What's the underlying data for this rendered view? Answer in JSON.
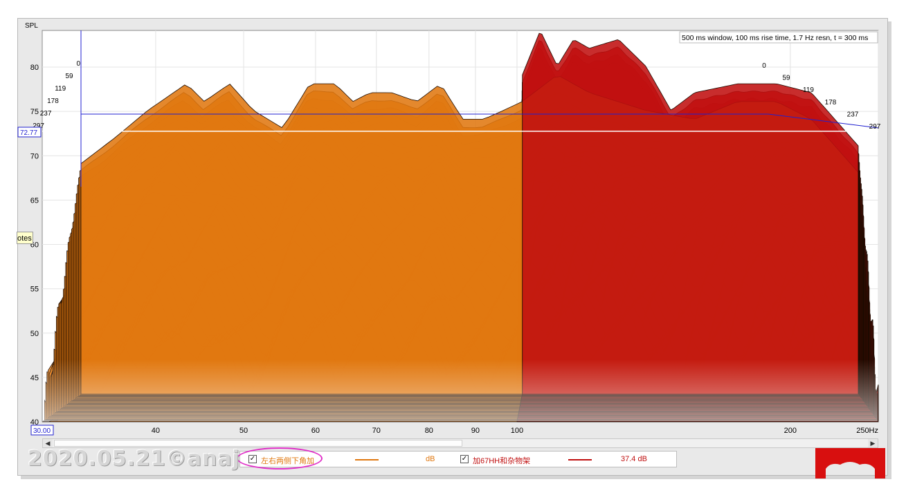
{
  "overlay": {
    "info_text": "500 ms window, 100 ms rise time,  1.7 Hz resn, t = 300 ms",
    "cursor_value": "72.77",
    "x_start_value": "30.00",
    "tab_text": "otes"
  },
  "legend": {
    "items": [
      {
        "name": "左右两侧下角加",
        "checked": "✓",
        "value": "dB",
        "color": "#e07810"
      },
      {
        "name": "加67HH和杂物架",
        "checked": "✓",
        "value": "37.4 dB",
        "color": "#c01010"
      }
    ]
  },
  "watermark": "2020.05.21©anaj",
  "colors": {
    "orange": "#e07810",
    "red": "#c01010",
    "cursor": "#2020d0"
  },
  "chart_data": {
    "type": "area",
    "ylabel": "SPL",
    "xlabel": "",
    "x_scale": "log",
    "xlim": [
      30,
      250
    ],
    "ylim": [
      40,
      82
    ],
    "y_ticks": [
      40,
      45,
      50,
      55,
      60,
      65,
      70,
      75,
      80
    ],
    "x_ticks": [
      {
        "v": 40,
        "label": "40"
      },
      {
        "v": 50,
        "label": "50"
      },
      {
        "v": 60,
        "label": "60"
      },
      {
        "v": 70,
        "label": "70"
      },
      {
        "v": 80,
        "label": "80"
      },
      {
        "v": 90,
        "label": "90"
      },
      {
        "v": 100,
        "label": "100"
      },
      {
        "v": 200,
        "label": "200"
      },
      {
        "v": 250,
        "label": "250Hz"
      }
    ],
    "time_ticks_ms": [
      0,
      59,
      119,
      178,
      237,
      297
    ],
    "cursor_spl": 72.77,
    "series": [
      {
        "name": "左右两侧下角加",
        "color": "#e07810",
        "x": [
          30,
          33,
          36,
          40,
          42,
          45,
          48,
          52,
          56,
          60,
          63,
          66,
          70,
          75,
          80,
          85,
          90,
          95,
          100,
          110,
          120,
          140,
          160,
          180,
          200,
          220,
          250
        ],
        "y": [
          66,
          69,
          72,
          75,
          73,
          75,
          72,
          70,
          75,
          75,
          73,
          74,
          74,
          73,
          75,
          71,
          71,
          72,
          73,
          76,
          74,
          72,
          71,
          73,
          73,
          71,
          65
        ]
      },
      {
        "name": "加67HH和杂物架",
        "color": "#c01010",
        "x": [
          100,
          105,
          110,
          115,
          120,
          130,
          140,
          150,
          160,
          180,
          200,
          220,
          250
        ],
        "y": [
          76,
          81,
          77,
          80,
          79,
          80,
          77,
          72,
          74,
          75,
          75,
          74,
          68
        ]
      }
    ]
  }
}
